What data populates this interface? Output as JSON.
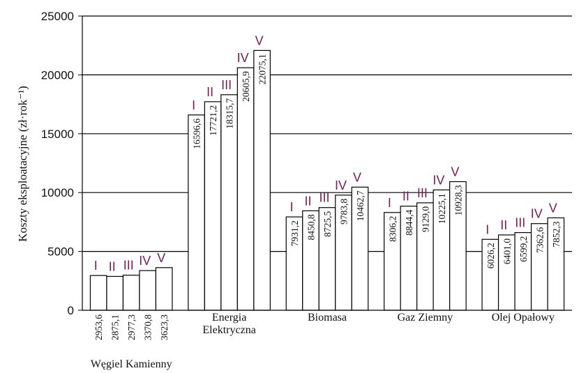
{
  "chart_data": {
    "type": "bar",
    "title": "",
    "ylabel": "Koszty eksploatacyjne (zł·rok⁻¹)",
    "xlabel": "",
    "ylim": [
      0,
      25000
    ],
    "yticks": [
      0,
      5000,
      10000,
      15000,
      20000,
      25000
    ],
    "grid": "horizontal",
    "variant_color": "#7a1a5a",
    "categories": [
      {
        "name_lines": [
          "Węgiel Kamienny"
        ],
        "values": [
          2953.6,
          2875.1,
          2977.3,
          3370.8,
          3623.3
        ],
        "value_labels": [
          "2953,6",
          "2875,1",
          "2977,3",
          "3370,8",
          "3623,3"
        ],
        "variants": [
          "I",
          "II",
          "III",
          "IV",
          "V"
        ]
      },
      {
        "name_lines": [
          "Energia",
          "Elektryczna"
        ],
        "values": [
          16596.6,
          17721.2,
          18315.7,
          20605.9,
          22075.1
        ],
        "value_labels": [
          "16596,6",
          "17721,2",
          "18315,7",
          "20605,9",
          "22075,1"
        ],
        "variants": [
          "I",
          "II",
          "III",
          "IV",
          "V"
        ]
      },
      {
        "name_lines": [
          "Biomasa"
        ],
        "values": [
          7931.2,
          8450.8,
          8725.5,
          9783.8,
          10462.7
        ],
        "value_labels": [
          "7931,2",
          "8450,8",
          "8725,5",
          "9783,8",
          "10462,7"
        ],
        "variants": [
          "I",
          "II",
          "III",
          "IV",
          "V"
        ]
      },
      {
        "name_lines": [
          "Gaz Ziemny"
        ],
        "values": [
          8306.2,
          8844.4,
          9129.0,
          10225.1,
          10928.3
        ],
        "value_labels": [
          "8306,2",
          "8844,4",
          "9129,0",
          "10225,1",
          "10928,3"
        ],
        "variants": [
          "I",
          "II",
          "III",
          "IV",
          "V"
        ]
      },
      {
        "name_lines": [
          "Olej Opałowy"
        ],
        "values": [
          6026.2,
          6401.0,
          6599.2,
          7362.6,
          7852.3
        ],
        "value_labels": [
          "6026,2",
          "6401,0",
          "6599,2",
          "7362,6",
          "7852,3"
        ],
        "variants": [
          "I",
          "II",
          "III",
          "IV",
          "V"
        ]
      }
    ]
  }
}
